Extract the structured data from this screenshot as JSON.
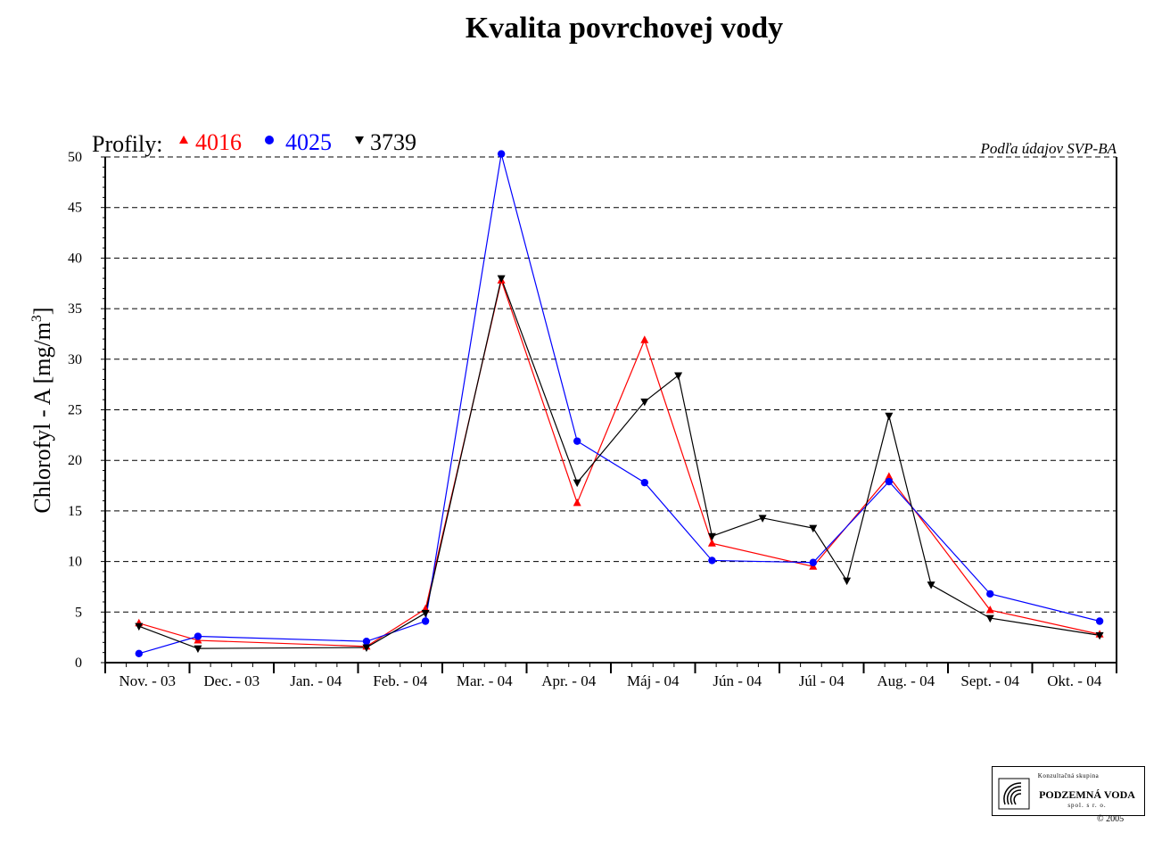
{
  "chart_data": {
    "type": "line",
    "title": "Kvalita povrchovej vody",
    "ylabel": "Chlorofyl - A [mg/m",
    "ylabel_sup": "3",
    "ylabel_close": "]",
    "ylim": [
      0,
      50
    ],
    "yticks": [
      0,
      5,
      10,
      15,
      20,
      25,
      30,
      35,
      40,
      45,
      50
    ],
    "grid": "horizontal dashed",
    "categories": [
      "Nov. - 03",
      "Dec. - 03",
      "Jan. - 04",
      "Feb. - 04",
      "Mar. - 04",
      "Apr. - 04",
      "Máj - 04",
      "Jún - 04",
      "Júl - 04",
      "Aug. - 04",
      "Sept. - 04",
      "Okt. - 04"
    ],
    "legend_prefix": "Profily:",
    "source_note": "Podľa údajov SVP-BA",
    "series": [
      {
        "name": "4016",
        "color": "#ff0000",
        "marker": "triangle-up",
        "points": [
          [
            0.4,
            3.9
          ],
          [
            1.1,
            2.2
          ],
          [
            3.1,
            1.6
          ],
          [
            3.8,
            5.3
          ],
          [
            4.7,
            37.8
          ],
          [
            5.6,
            15.8
          ],
          [
            6.4,
            31.9
          ],
          [
            7.2,
            11.8
          ],
          [
            8.4,
            9.5
          ],
          [
            9.3,
            18.4
          ],
          [
            10.5,
            5.2
          ],
          [
            11.8,
            2.8
          ]
        ]
      },
      {
        "name": "4025",
        "color": "#0000ff",
        "marker": "circle",
        "points": [
          [
            0.4,
            0.9
          ],
          [
            1.1,
            2.6
          ],
          [
            3.1,
            2.1
          ],
          [
            3.8,
            4.1
          ],
          [
            4.7,
            50.3
          ],
          [
            5.6,
            21.9
          ],
          [
            6.4,
            17.8
          ],
          [
            7.2,
            10.1
          ],
          [
            8.4,
            9.9
          ],
          [
            9.3,
            17.9
          ],
          [
            10.5,
            6.8
          ],
          [
            11.8,
            4.1
          ]
        ]
      },
      {
        "name": "3739",
        "color": "#000000",
        "marker": "triangle-down",
        "points": [
          [
            0.4,
            3.6
          ],
          [
            1.1,
            1.4
          ],
          [
            3.1,
            1.5
          ],
          [
            3.8,
            4.9
          ],
          [
            4.7,
            38.0
          ],
          [
            5.6,
            17.8
          ],
          [
            6.4,
            25.8
          ],
          [
            6.8,
            28.4
          ],
          [
            7.2,
            12.5
          ],
          [
            7.8,
            14.3
          ],
          [
            8.4,
            13.3
          ],
          [
            8.8,
            8.1
          ],
          [
            9.3,
            24.4
          ],
          [
            9.8,
            7.7
          ],
          [
            10.5,
            4.4
          ],
          [
            11.8,
            2.7
          ]
        ]
      }
    ]
  },
  "logo": {
    "top_text": "Konzultačná skupina",
    "name": "PODZEMNÁ VODA",
    "sub": "spol. s r. o."
  },
  "copyright": "© 2005"
}
